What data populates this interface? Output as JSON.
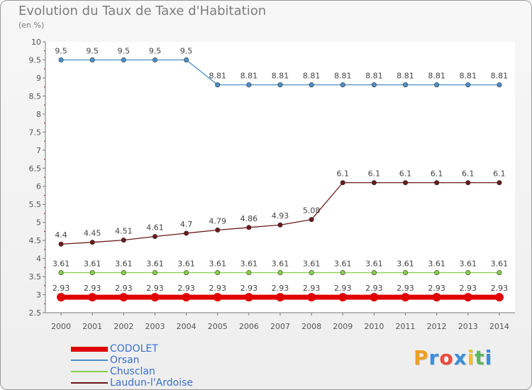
{
  "chart_data": {
    "type": "line",
    "title": "Evolution du Taux de Taxe d'Habitation",
    "subtitle": "(en %)",
    "ylim": [
      2.5,
      10
    ],
    "yticks": [
      "2.5",
      "3",
      "3.5",
      "4",
      "4.5",
      "5",
      "5.5",
      "6",
      "6.5",
      "7",
      "7.5",
      "8",
      "8.5",
      "9",
      "9.5",
      "10"
    ],
    "x": [
      "2000",
      "2001",
      "2002",
      "2003",
      "2004",
      "2005",
      "2006",
      "2007",
      "2008",
      "2009",
      "2010",
      "2011",
      "2012",
      "2013",
      "2014"
    ],
    "grid": false,
    "legend_position": "bottom-left",
    "series": [
      {
        "name": "CODOLET",
        "color": "#e00000",
        "values": [
          2.93,
          2.93,
          2.93,
          2.93,
          2.93,
          2.93,
          2.93,
          2.93,
          2.93,
          2.93,
          2.93,
          2.93,
          2.93,
          2.93,
          2.93
        ],
        "labels": [
          "2.93",
          "2.93",
          "2.93",
          "2.93",
          "2.93",
          "2.93",
          "2.93",
          "2.93",
          "2.93",
          "2.93",
          "2.93",
          "2.93",
          "2.93",
          "2.93",
          "2.93"
        ]
      },
      {
        "name": "Orsan",
        "color": "#4a90c8",
        "values": [
          9.5,
          9.5,
          9.5,
          9.5,
          9.5,
          8.81,
          8.81,
          8.81,
          8.81,
          8.81,
          8.81,
          8.81,
          8.81,
          8.81,
          8.81
        ],
        "labels": [
          "9.5",
          "9.5",
          "9.5",
          "9.5",
          "9.5",
          "8.81",
          "8.81",
          "8.81",
          "8.81",
          "8.81",
          "8.81",
          "8.81",
          "8.81",
          "8.81",
          "8.81"
        ]
      },
      {
        "name": "Chusclan",
        "color": "#88d04a",
        "values": [
          3.61,
          3.61,
          3.61,
          3.61,
          3.61,
          3.61,
          3.61,
          3.61,
          3.61,
          3.61,
          3.61,
          3.61,
          3.61,
          3.61,
          3.61
        ],
        "labels": [
          "3.61",
          "3.61",
          "3.61",
          "3.61",
          "3.61",
          "3.61",
          "3.61",
          "3.61",
          "3.61",
          "3.61",
          "3.61",
          "3.61",
          "3.61",
          "3.61",
          "3.61"
        ]
      },
      {
        "name": "Laudun-l'Ardoise",
        "color": "#6b1a1a",
        "values": [
          4.4,
          4.45,
          4.51,
          4.61,
          4.7,
          4.79,
          4.86,
          4.93,
          5.08,
          6.1,
          6.1,
          6.1,
          6.1,
          6.1,
          6.1
        ],
        "labels": [
          "4.4",
          "4.45",
          "4.51",
          "4.61",
          "4.7",
          "4.79",
          "4.86",
          "4.93",
          "5.08",
          "6.1",
          "6.1",
          "6.1",
          "6.1",
          "6.1",
          "6.1"
        ]
      }
    ]
  },
  "brand": {
    "letters": [
      "P",
      "r",
      "o",
      "x",
      "i",
      "t",
      "i"
    ],
    "colors": [
      "#f0a020",
      "#3b8fd8",
      "#e84c3d",
      "#3b8fd8",
      "#f0c020",
      "#5cb85c",
      "#3b8fd8"
    ]
  }
}
